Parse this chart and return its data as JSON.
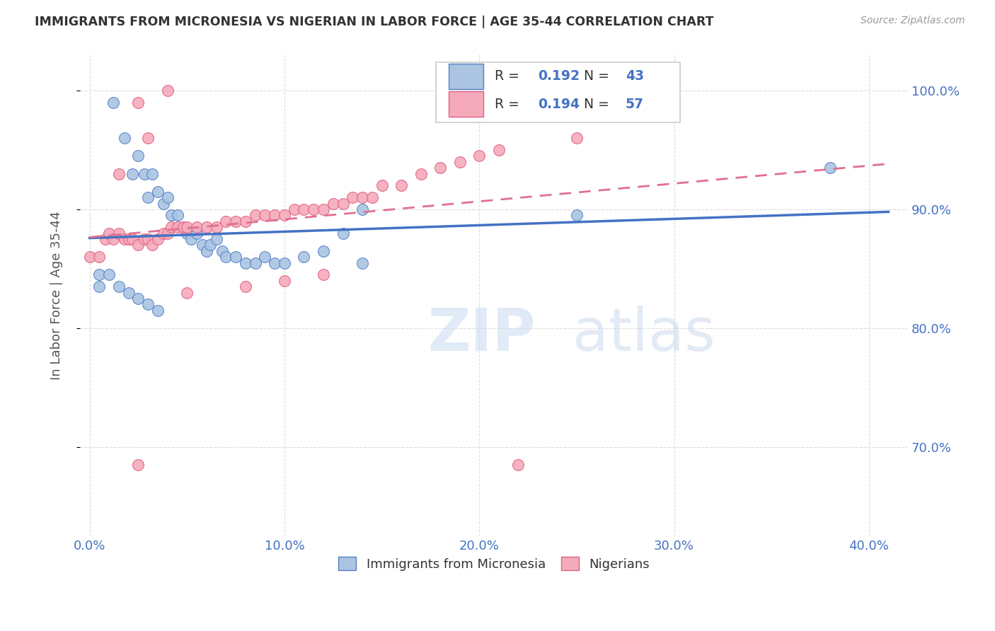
{
  "title": "IMMIGRANTS FROM MICRONESIA VS NIGERIAN IN LABOR FORCE | AGE 35-44 CORRELATION CHART",
  "source": "Source: ZipAtlas.com",
  "ylabel": "In Labor Force | Age 35-44",
  "x_tick_labels": [
    "0.0%",
    "",
    "10.0%",
    "",
    "20.0%",
    "",
    "30.0%",
    "",
    "40.0%"
  ],
  "x_tick_vals": [
    0.0,
    0.05,
    0.1,
    0.15,
    0.2,
    0.25,
    0.3,
    0.35,
    0.4
  ],
  "x_tick_labels_show": [
    "0.0%",
    "10.0%",
    "20.0%",
    "30.0%",
    "40.0%"
  ],
  "x_tick_vals_show": [
    0.0,
    0.1,
    0.2,
    0.3,
    0.4
  ],
  "y_tick_labels": [
    "70.0%",
    "80.0%",
    "90.0%",
    "100.0%"
  ],
  "y_tick_vals": [
    0.7,
    0.8,
    0.9,
    1.0
  ],
  "xlim": [
    -0.005,
    0.42
  ],
  "ylim": [
    0.625,
    1.03
  ],
  "micronesia_R": 0.192,
  "micronesia_N": 43,
  "nigerian_R": 0.194,
  "nigerian_N": 57,
  "micronesia_color": "#aac4e2",
  "nigerian_color": "#f5aabb",
  "micronesia_edge_color": "#5580c8",
  "nigerian_edge_color": "#e06080",
  "micronesia_line_color": "#4472c4",
  "nigerian_line_color": "#e07090",
  "background_color": "#ffffff",
  "watermark_text": "ZIPatlas",
  "grid_color": "#dddddd",
  "micronesia_x": [
    0.005,
    0.012,
    0.018,
    0.022,
    0.025,
    0.028,
    0.03,
    0.032,
    0.035,
    0.038,
    0.04,
    0.042,
    0.045,
    0.048,
    0.05,
    0.052,
    0.055,
    0.058,
    0.06,
    0.062,
    0.065,
    0.068,
    0.07,
    0.075,
    0.08,
    0.085,
    0.09,
    0.095,
    0.1,
    0.11,
    0.12,
    0.13,
    0.14,
    0.005,
    0.01,
    0.015,
    0.02,
    0.025,
    0.03,
    0.035,
    0.25,
    0.38,
    0.14
  ],
  "micronesia_y": [
    0.845,
    0.99,
    0.96,
    0.93,
    0.945,
    0.93,
    0.91,
    0.93,
    0.915,
    0.905,
    0.91,
    0.895,
    0.895,
    0.885,
    0.88,
    0.875,
    0.88,
    0.87,
    0.865,
    0.87,
    0.875,
    0.865,
    0.86,
    0.86,
    0.855,
    0.855,
    0.86,
    0.855,
    0.855,
    0.86,
    0.865,
    0.88,
    0.9,
    0.835,
    0.845,
    0.835,
    0.83,
    0.825,
    0.82,
    0.815,
    0.895,
    0.935,
    0.855
  ],
  "nigerian_x": [
    0.0,
    0.005,
    0.008,
    0.01,
    0.012,
    0.015,
    0.018,
    0.02,
    0.022,
    0.025,
    0.028,
    0.03,
    0.032,
    0.035,
    0.038,
    0.04,
    0.042,
    0.045,
    0.048,
    0.05,
    0.055,
    0.06,
    0.065,
    0.07,
    0.075,
    0.08,
    0.085,
    0.09,
    0.095,
    0.1,
    0.105,
    0.11,
    0.115,
    0.12,
    0.125,
    0.13,
    0.135,
    0.14,
    0.145,
    0.15,
    0.16,
    0.17,
    0.18,
    0.19,
    0.2,
    0.21,
    0.25,
    0.015,
    0.025,
    0.03,
    0.05,
    0.08,
    0.1,
    0.12,
    0.04,
    0.025,
    0.22
  ],
  "nigerian_y": [
    0.86,
    0.86,
    0.875,
    0.88,
    0.875,
    0.88,
    0.875,
    0.875,
    0.875,
    0.87,
    0.875,
    0.875,
    0.87,
    0.875,
    0.88,
    0.88,
    0.885,
    0.885,
    0.885,
    0.885,
    0.885,
    0.885,
    0.885,
    0.89,
    0.89,
    0.89,
    0.895,
    0.895,
    0.895,
    0.895,
    0.9,
    0.9,
    0.9,
    0.9,
    0.905,
    0.905,
    0.91,
    0.91,
    0.91,
    0.92,
    0.92,
    0.93,
    0.935,
    0.94,
    0.945,
    0.95,
    0.96,
    0.93,
    0.99,
    0.96,
    0.83,
    0.835,
    0.84,
    0.845,
    1.0,
    0.685,
    0.685
  ]
}
